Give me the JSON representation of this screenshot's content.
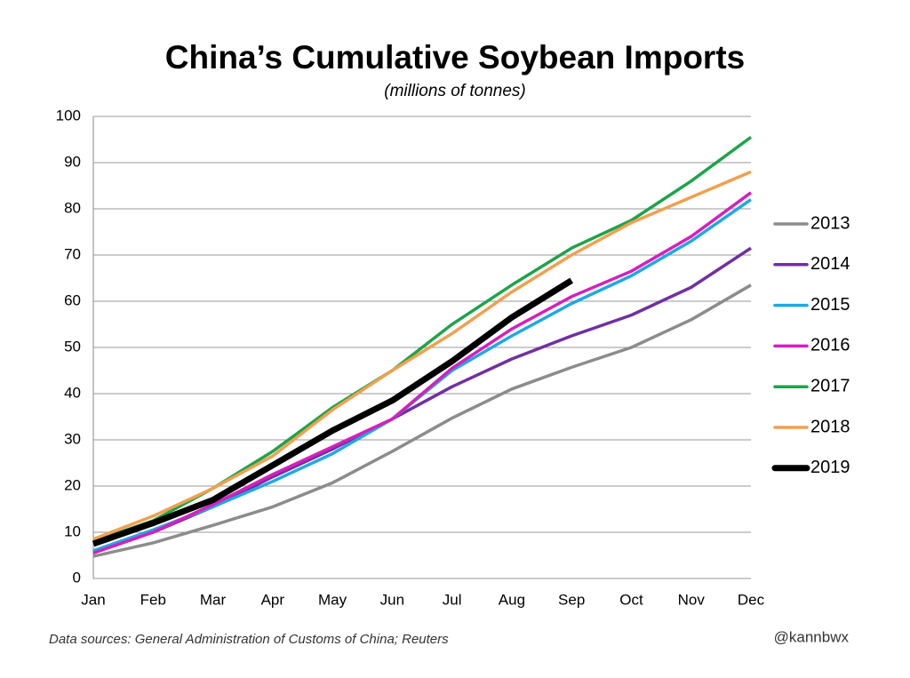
{
  "chart_data": {
    "type": "line",
    "title": "China’s Cumulative Soybean Imports",
    "subtitle": "(millions of tonnes)",
    "categories": [
      "Jan",
      "Feb",
      "Mar",
      "Apr",
      "May",
      "Jun",
      "Jul",
      "Aug",
      "Sep",
      "Oct",
      "Nov",
      "Dec"
    ],
    "series": [
      {
        "name": "2013",
        "color": "#8c8c8c",
        "linewidth": 3.5,
        "values": [
          4.8,
          7.7,
          11.5,
          15.5,
          20.7,
          27.5,
          34.7,
          41,
          45.7,
          50,
          56,
          63.5
        ]
      },
      {
        "name": "2014",
        "color": "#7030a0",
        "linewidth": 3.5,
        "values": [
          5.8,
          10,
          15.5,
          22,
          28,
          34.5,
          41.5,
          47.5,
          52.5,
          57,
          63,
          71.5
        ]
      },
      {
        "name": "2015",
        "color": "#1fa9e1",
        "linewidth": 3.5,
        "values": [
          6,
          10.5,
          15.5,
          21,
          27,
          34.5,
          45,
          52.5,
          59.5,
          65.5,
          73,
          82
        ]
      },
      {
        "name": "2016",
        "color": "#d61fbd",
        "linewidth": 3.5,
        "values": [
          5.5,
          10,
          16,
          22.5,
          28.5,
          34.5,
          45.5,
          54,
          61,
          66.5,
          74,
          83.5
        ]
      },
      {
        "name": "2017",
        "color": "#1ea34a",
        "linewidth": 3.5,
        "values": [
          8,
          12.5,
          19.5,
          27.5,
          37,
          45,
          55,
          63.5,
          71.5,
          77.5,
          86,
          95.5
        ]
      },
      {
        "name": "2018",
        "color": "#f0a050",
        "linewidth": 3.5,
        "values": [
          8.5,
          13.5,
          19.5,
          26.5,
          36.5,
          45,
          53,
          62,
          70,
          77,
          82.5,
          88
        ]
      },
      {
        "name": "2019",
        "color": "#000000",
        "linewidth": 7,
        "values": [
          7.5,
          12,
          17,
          24.5,
          32,
          38.5,
          47,
          56.5,
          64.5,
          null,
          null,
          null
        ]
      }
    ],
    "ylim": [
      0,
      100
    ],
    "yticks": [
      0,
      10,
      20,
      30,
      40,
      50,
      60,
      70,
      80,
      90,
      100
    ],
    "grid": true,
    "legend": "right",
    "source": "Data sources: General Administration of Customs of China; Reuters",
    "credit": "@kannbwx"
  }
}
